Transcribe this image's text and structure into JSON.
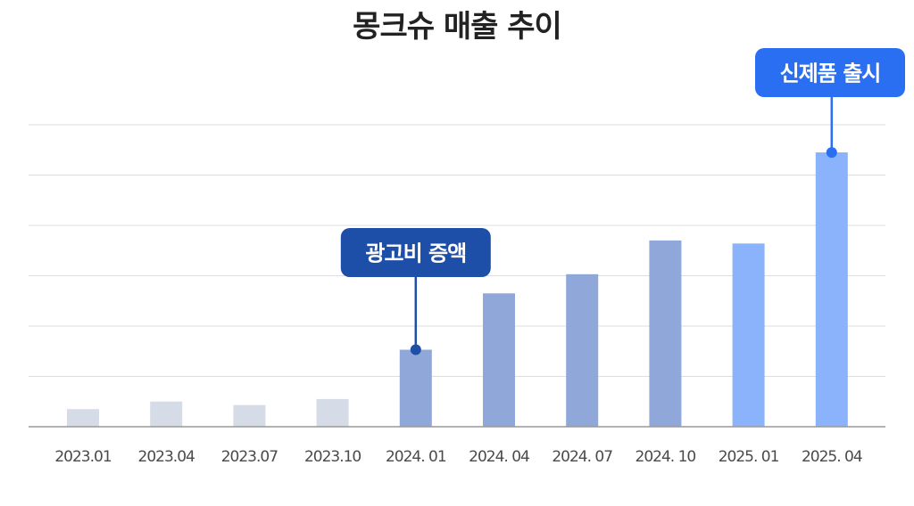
{
  "chart_data": {
    "type": "bar",
    "title": "몽크슈 매출 추이",
    "categories": [
      "2023.01",
      "2023.04",
      "2023.07",
      "2023.10",
      "2024. 01",
      "2024. 04",
      "2024. 07",
      "2024. 10",
      "2025. 01",
      "2025. 04"
    ],
    "values": [
      0.35,
      0.5,
      0.43,
      0.55,
      1.53,
      2.65,
      3.03,
      3.7,
      3.64,
      5.45
    ],
    "ylim": [
      0,
      6
    ],
    "grid": true,
    "xlabel": "",
    "ylabel": "",
    "colors": {
      "2023": "#d5dbe7",
      "2024": "#8fa8d9",
      "2025": "#8ab3fc",
      "axis": "#999999",
      "grid": "#dddddd"
    },
    "annotations": [
      {
        "category": "2024. 01",
        "text": "광고비 증액",
        "color": "#1e4fa8"
      },
      {
        "category": "2025. 04",
        "text": "신제품 출시",
        "color": "#2a6ff2"
      }
    ]
  }
}
